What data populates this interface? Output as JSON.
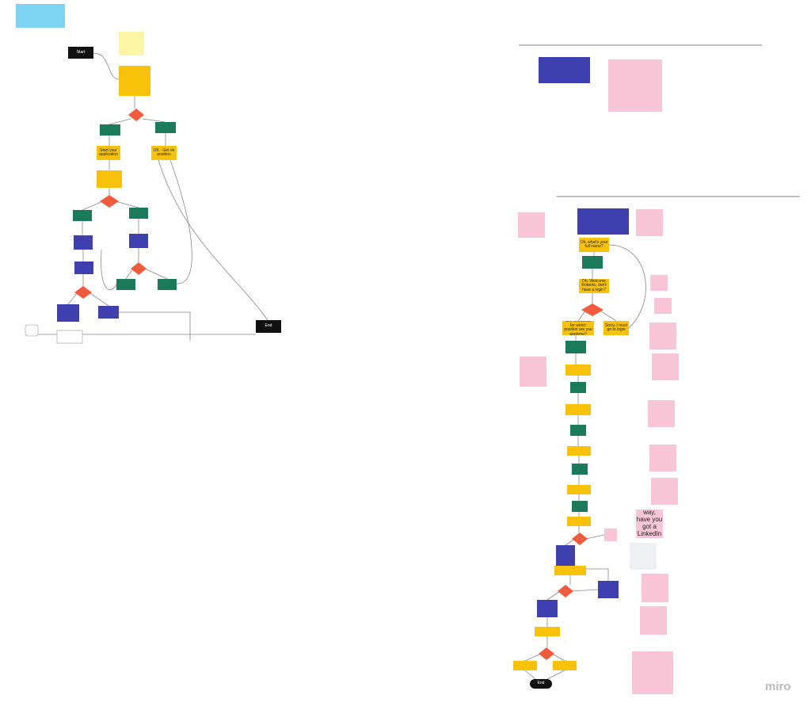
{
  "left_flow": {
    "nodes": [
      {
        "label": "Start"
      },
      {
        "label": "Start your application"
      },
      {
        "label": "OK - Get no position"
      },
      {
        "label": "End"
      }
    ]
  },
  "right_flow": {
    "nodes": [
      {
        "label": "Oh, what's your full name?"
      },
      {
        "label": "Oh, Welcome Roberto, don't have a login?"
      },
      {
        "label": "Oh, Welcome, for which position are you applying?"
      },
      {
        "label": "Sorry, I must go to login"
      },
      {
        "label": "By the way, have you got a LinkedIn account?"
      },
      {
        "label": "End"
      }
    ]
  },
  "branding": "miro"
}
